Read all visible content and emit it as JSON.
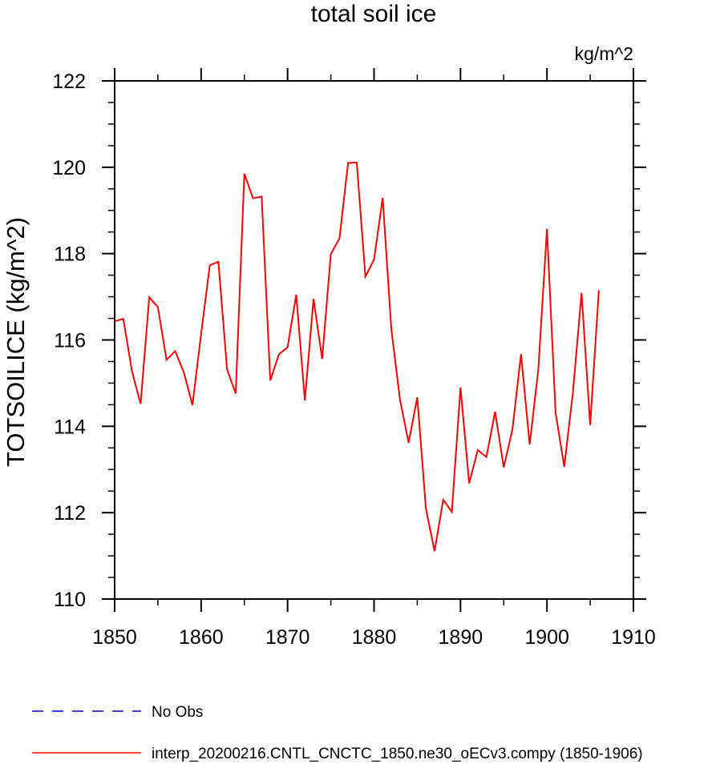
{
  "chart_data": {
    "type": "line",
    "title": "total soil ice",
    "units": "kg/m^2",
    "ylabel": "TOTSOILICE  (kg/m^2)",
    "xlabel": "",
    "xlim": [
      1850,
      1910
    ],
    "ylim": [
      110,
      122
    ],
    "x_ticks": [
      1850,
      1860,
      1870,
      1880,
      1890,
      1900,
      1910
    ],
    "y_ticks": [
      110,
      112,
      114,
      116,
      118,
      120,
      122
    ],
    "grid": false,
    "legend_position": "bottom-left",
    "series": [
      {
        "name": "No Obs",
        "color": "#0000cc",
        "style": "dashed",
        "x": [],
        "y": []
      },
      {
        "name": "interp_20200216.CNTL_CNCTC_1850.ne30_oECv3.compy (1850-1906)",
        "color": "#ff0000",
        "style": "solid",
        "x": [
          1850,
          1851,
          1852,
          1853,
          1854,
          1855,
          1856,
          1857,
          1858,
          1859,
          1860,
          1861,
          1862,
          1863,
          1864,
          1865,
          1866,
          1867,
          1868,
          1869,
          1870,
          1871,
          1872,
          1873,
          1874,
          1875,
          1876,
          1877,
          1878,
          1879,
          1880,
          1881,
          1882,
          1883,
          1884,
          1885,
          1886,
          1887,
          1888,
          1889,
          1890,
          1891,
          1892,
          1893,
          1894,
          1895,
          1896,
          1897,
          1898,
          1899,
          1900,
          1901,
          1902,
          1903,
          1904,
          1905,
          1906
        ],
        "y": [
          116.43,
          116.49,
          115.28,
          114.52,
          116.99,
          116.76,
          115.54,
          115.74,
          115.25,
          114.49,
          116.14,
          117.73,
          117.81,
          115.32,
          114.76,
          119.85,
          119.28,
          119.32,
          115.06,
          115.67,
          115.83,
          117.05,
          114.6,
          116.95,
          115.56,
          117.99,
          118.35,
          120.1,
          120.11,
          117.47,
          117.86,
          119.29,
          116.25,
          114.62,
          113.62,
          114.67,
          112.09,
          111.11,
          112.3,
          112.02,
          114.9,
          112.68,
          113.45,
          113.29,
          114.34,
          113.05,
          113.92,
          115.67,
          113.58,
          115.31,
          118.57,
          114.31,
          113.06,
          114.78,
          117.09,
          114.03,
          117.15
        ]
      }
    ]
  }
}
